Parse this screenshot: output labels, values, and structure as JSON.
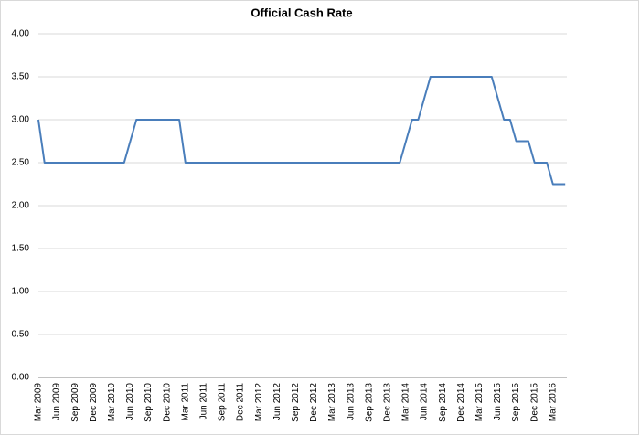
{
  "chart_data": {
    "type": "line",
    "title": "Official Cash Rate",
    "categories": [
      "Mar 2009",
      null,
      null,
      "Jun 2009",
      null,
      null,
      "Sep 2009",
      null,
      null,
      "Dec 2009",
      null,
      null,
      "Mar 2010",
      null,
      null,
      "Jun 2010",
      null,
      null,
      "Sep 2010",
      null,
      null,
      "Dec 2010",
      null,
      null,
      "Mar 2011",
      null,
      null,
      "Jun 2011",
      null,
      null,
      "Sep 2011",
      null,
      null,
      "Dec 2011",
      null,
      null,
      "Mar 2012",
      null,
      null,
      "Jun 2012",
      null,
      null,
      "Sep 2012",
      null,
      null,
      "Dec 2012",
      null,
      null,
      "Mar 2013",
      null,
      null,
      "Jun 2013",
      null,
      null,
      "Sep 2013",
      null,
      null,
      "Dec 2013",
      null,
      null,
      "Mar 2014",
      null,
      null,
      "Jun 2014",
      null,
      null,
      "Sep 2014",
      null,
      null,
      "Dec 2014",
      null,
      null,
      "Mar 2015",
      null,
      null,
      "Jun 2015",
      null,
      null,
      "Sep 2015",
      null,
      null,
      "Dec 2015",
      null,
      null,
      "Mar 2016",
      null,
      null
    ],
    "series": [
      {
        "color": "#4a7ebb",
        "values": [
          3.0,
          2.5,
          2.5,
          2.5,
          2.5,
          2.5,
          2.5,
          2.5,
          2.5,
          2.5,
          2.5,
          2.5,
          2.5,
          2.5,
          2.5,
          2.75,
          3.0,
          3.0,
          3.0,
          3.0,
          3.0,
          3.0,
          3.0,
          3.0,
          2.5,
          2.5,
          2.5,
          2.5,
          2.5,
          2.5,
          2.5,
          2.5,
          2.5,
          2.5,
          2.5,
          2.5,
          2.5,
          2.5,
          2.5,
          2.5,
          2.5,
          2.5,
          2.5,
          2.5,
          2.5,
          2.5,
          2.5,
          2.5,
          2.5,
          2.5,
          2.5,
          2.5,
          2.5,
          2.5,
          2.5,
          2.5,
          2.5,
          2.5,
          2.5,
          2.5,
          2.75,
          3.0,
          3.0,
          3.25,
          3.5,
          3.5,
          3.5,
          3.5,
          3.5,
          3.5,
          3.5,
          3.5,
          3.5,
          3.5,
          3.5,
          3.25,
          3.0,
          3.0,
          2.75,
          2.75,
          2.75,
          2.5,
          2.5,
          2.5,
          2.25,
          2.25,
          2.25
        ]
      }
    ],
    "ylim": [
      0,
      4
    ],
    "yticks": [
      {
        "value": 0,
        "label": "0.00"
      },
      {
        "value": 0.5,
        "label": "0.50"
      },
      {
        "value": 1,
        "label": "1.00"
      },
      {
        "value": 1.5,
        "label": "1.50"
      },
      {
        "value": 2,
        "label": "2.00"
      },
      {
        "value": 2.5,
        "label": "2.50"
      },
      {
        "value": 3,
        "label": "3.00"
      },
      {
        "value": 3.5,
        "label": "3.50"
      },
      {
        "value": 4,
        "label": "4.00"
      }
    ],
    "grid": true
  }
}
